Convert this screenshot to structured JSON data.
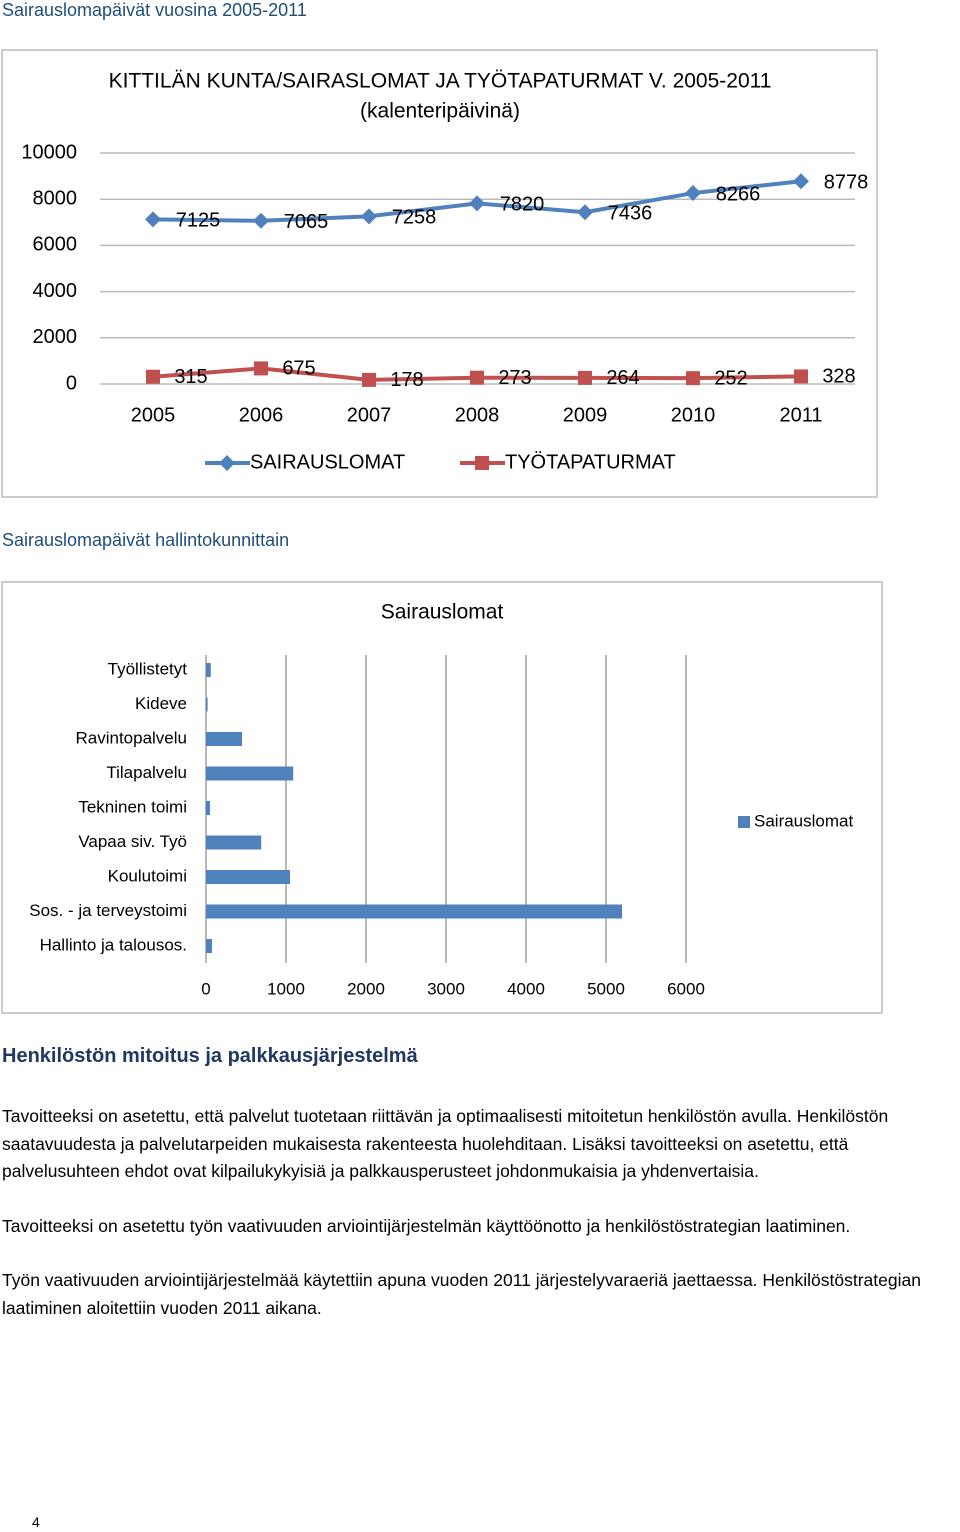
{
  "header": {
    "title": "Sairauslomapäivät vuosina 2005-2011"
  },
  "chart_data": [
    {
      "type": "line",
      "title": "KITTILÄN KUNTA/SAIRASLOMAT JA TYÖTAPATURMAT V. 2005-2011",
      "subtitle": "(kalenteripäivinä)",
      "categories": [
        "2005",
        "2006",
        "2007",
        "2008",
        "2009",
        "2010",
        "2011"
      ],
      "series": [
        {
          "name": "SAIRAUSLOMAT",
          "color": "#4f81bd",
          "marker": "diamond",
          "values": [
            7125,
            7065,
            7258,
            7820,
            7436,
            8266,
            8778
          ]
        },
        {
          "name": "TYÖTAPATURMAT",
          "color": "#c0504d",
          "marker": "square",
          "values": [
            315,
            675,
            178,
            273,
            264,
            252,
            328
          ]
        }
      ],
      "ylim": [
        0,
        10000
      ],
      "yticks": [
        0,
        2000,
        4000,
        6000,
        8000,
        10000
      ],
      "grid": true,
      "legend": "bottom",
      "data_labels": true
    },
    {
      "type": "bar",
      "orientation": "horizontal",
      "title": "Sairauslomat",
      "categories": [
        "Työllistetyt",
        "Kideve",
        "Ravintopalvelu",
        "Tilapalvelu",
        "Tekninen toimi",
        "Vapaa siv. Työ",
        "Koulutoimi",
        "Sos. - ja terveystoimi",
        "Hallinto ja talousos."
      ],
      "series": [
        {
          "name": "Sairauslomat",
          "color": "#4f81bd",
          "values": [
            60,
            20,
            450,
            1090,
            50,
            690,
            1050,
            5200,
            75
          ]
        }
      ],
      "xlim": [
        0,
        6000
      ],
      "xticks": [
        0,
        1000,
        2000,
        3000,
        4000,
        5000,
        6000
      ],
      "grid": true,
      "legend": "right"
    }
  ],
  "section": {
    "caption": "Sairauslomapäivät hallintokunnittain",
    "heading": "Henkilöstön mitoitus ja palkkausjärjestelmä",
    "paragraphs": [
      "Tavoitteeksi on asetettu, että palvelut tuotetaan riittävän ja optimaalisesti mitoitetun henkilöstön avulla. Henkilöstön saatavuudesta ja palvelutarpeiden mukaisesta rakenteesta huolehditaan. Lisäksi tavoitteeksi on asetettu, että palvelusuhteen ehdot ovat kilpailukykyisiä ja palkkausperusteet johdonmukaisia ja yhdenvertaisia.",
      "Tavoitteeksi on asetettu työn vaativuuden arviointijärjestelmän käyttöönotto ja henkilöstöstrategian laatiminen.",
      "Työn vaativuuden arviointijärjestelmää käytettiin apuna vuoden 2011 järjestelyvaraeriä jaettaessa. Henkilöstöstrategian laatiminen aloitettiin vuoden 2011 aikana."
    ]
  },
  "page_number": "4"
}
